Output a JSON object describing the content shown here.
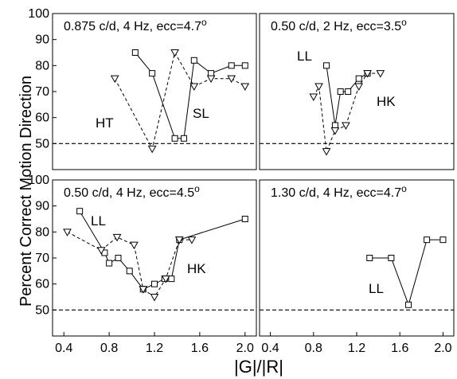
{
  "figure": {
    "ylabel": "Percent Correct Motion Direction",
    "xlabel": "|G|/|R|"
  },
  "chart_data": [
    {
      "type": "line",
      "title": "0.875 c/d, 4 Hz, ecc=4.7°",
      "xlim": [
        0.3,
        2.1
      ],
      "ylim": [
        40,
        100
      ],
      "yticks": [
        "50",
        "60",
        "70",
        "80",
        "90",
        "100"
      ],
      "xticks": [],
      "reference_line": 50,
      "series": [
        {
          "name": "SL",
          "marker": "square",
          "line": "solid",
          "x": [
            1.03,
            1.18,
            1.38,
            1.46,
            1.55,
            1.7,
            1.88,
            2.0
          ],
          "y": [
            85,
            77,
            52,
            52,
            82,
            77,
            80,
            80
          ]
        },
        {
          "name": "HT",
          "marker": "triangle-down",
          "line": "dashed",
          "x": [
            0.85,
            1.18,
            1.38,
            1.55,
            1.7,
            1.88,
            2.0
          ],
          "y": [
            75,
            48,
            85,
            72,
            75,
            75,
            72
          ]
        }
      ]
    },
    {
      "type": "line",
      "title": "0.50 c/d, 2 Hz, ecc=3.5°",
      "xlim": [
        0.3,
        2.1
      ],
      "ylim": [
        40,
        100
      ],
      "yticks": [],
      "xticks": [],
      "reference_line": 50,
      "series": [
        {
          "name": "LL",
          "marker": "square",
          "line": "solid",
          "x": [
            0.92,
            1.0,
            1.05,
            1.12,
            1.22,
            1.3
          ],
          "y": [
            80,
            57,
            70,
            70,
            75,
            77
          ]
        },
        {
          "name": "HK",
          "marker": "triangle-down",
          "line": "dashed",
          "x": [
            0.8,
            0.85,
            0.92,
            1.0,
            1.1,
            1.22,
            1.3,
            1.42
          ],
          "y": [
            68,
            72,
            47,
            55,
            57,
            72,
            77,
            77
          ]
        }
      ]
    },
    {
      "type": "line",
      "title": "0.50 c/d, 4 Hz, ecc=4.5°",
      "xlim": [
        0.3,
        2.1
      ],
      "ylim": [
        40,
        100
      ],
      "yticks": [
        "50",
        "60",
        "70",
        "80",
        "90",
        "100"
      ],
      "xticks": [
        "0.4",
        "0.8",
        "1.2",
        "1.6",
        "2.0"
      ],
      "reference_line": 50,
      "series": [
        {
          "name": "LL",
          "marker": "square",
          "line": "solid",
          "x": [
            0.54,
            0.76,
            0.8,
            0.88,
            0.98,
            1.1,
            1.2,
            1.29,
            1.35,
            1.42,
            2.0
          ],
          "y": [
            88,
            72,
            68,
            70,
            65,
            58,
            60,
            62,
            62,
            77,
            85
          ]
        },
        {
          "name": "HK",
          "marker": "triangle-down",
          "line": "dashed",
          "x": [
            0.43,
            0.73,
            0.87,
            1.02,
            1.1,
            1.2,
            1.3,
            1.42,
            1.53
          ],
          "y": [
            80,
            73,
            78,
            75,
            58,
            55,
            62,
            77,
            77
          ]
        }
      ]
    },
    {
      "type": "line",
      "title": "1.30 c/d, 4 Hz, ecc=4.7°",
      "xlim": [
        0.3,
        2.1
      ],
      "ylim": [
        40,
        100
      ],
      "yticks": [],
      "xticks": [
        "0.4",
        "0.8",
        "1.2",
        "1.6",
        "2.0"
      ],
      "reference_line": 50,
      "series": [
        {
          "name": "LL",
          "marker": "square",
          "line": "solid",
          "x": [
            1.32,
            1.52,
            1.68,
            1.85,
            2.0
          ],
          "y": [
            70,
            70,
            52,
            77,
            77
          ]
        }
      ]
    }
  ]
}
